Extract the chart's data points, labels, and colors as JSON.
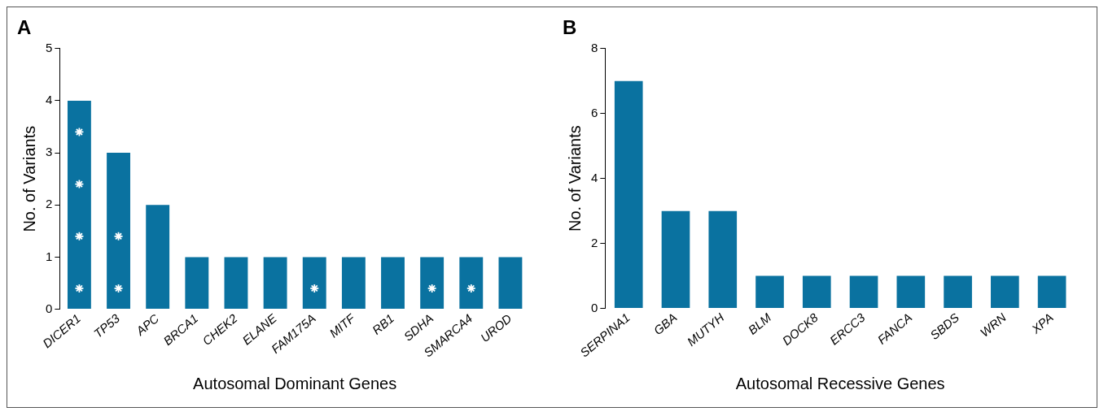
{
  "chart_data": [
    {
      "type": "bar",
      "title": "A",
      "xlabel": "Autosomal Dominant Genes",
      "ylabel": "No. of Variants",
      "categories": [
        "DICER1",
        "TP53",
        "APC",
        "BRCA1",
        "CHEK2",
        "ELANE",
        "FAM175A",
        "MITF",
        "RB1",
        "SDHA",
        "SMARCA4",
        "UROD"
      ],
      "ylim": [
        0,
        5
      ],
      "yticks": [
        0,
        1,
        2,
        3,
        4,
        5
      ],
      "grid": false,
      "series": [
        {
          "type": "bar",
          "color": "#0a72a0",
          "values": [
            4,
            3,
            2,
            1,
            1,
            1,
            1,
            1,
            1,
            1,
            1,
            1
          ]
        },
        {
          "type": "scatter",
          "color": "#ffffff",
          "marker": "cross",
          "x": [
            "DICER1",
            "DICER1",
            "DICER1",
            "DICER1",
            "TP53",
            "TP53",
            "FAM175A",
            "SDHA",
            "SMARCA4"
          ],
          "values": [
            0.4,
            1.4,
            2.4,
            3.4,
            0.4,
            1.4,
            0.4,
            0.4,
            0.4
          ]
        }
      ]
    },
    {
      "type": "bar",
      "title": "B",
      "xlabel": "Autosomal Recessive Genes",
      "ylabel": "No. of Variants",
      "categories": [
        "SERPINA1",
        "GBA",
        "MUTYH",
        "BLM",
        "DOCK8",
        "ERCC3",
        "FANCA",
        "SBDS",
        "WRN",
        "XPA"
      ],
      "ylim": [
        0,
        8
      ],
      "yticks": [
        0,
        2,
        4,
        6,
        8
      ],
      "grid": false,
      "series": [
        {
          "type": "bar",
          "color": "#0a72a0",
          "values": [
            7,
            3,
            3,
            1,
            1,
            1,
            1,
            1,
            1,
            1
          ]
        }
      ]
    }
  ]
}
